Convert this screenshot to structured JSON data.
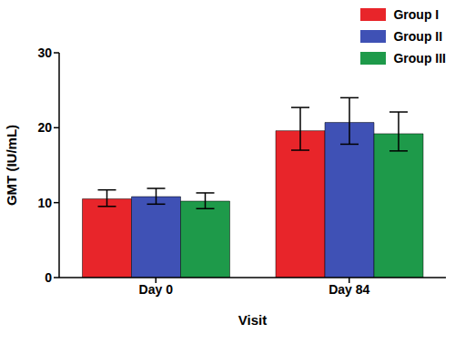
{
  "chart_data": {
    "type": "bar",
    "x_label": "Visit",
    "y_label": "GMT (IU/mL)",
    "categories": [
      "Day 0",
      "Day 84"
    ],
    "series": [
      {
        "name": "Group I",
        "color": "#e8252a",
        "values": [
          10.5,
          19.6
        ],
        "errors": [
          [
            1.0,
            1.2
          ],
          [
            2.6,
            3.1
          ]
        ]
      },
      {
        "name": "Group II",
        "color": "#3f51b5",
        "values": [
          10.8,
          20.7
        ],
        "errors": [
          [
            1.0,
            1.1
          ],
          [
            2.9,
            3.3
          ]
        ]
      },
      {
        "name": "Group III",
        "color": "#1e9a4a",
        "values": [
          10.2,
          19.2
        ],
        "errors": [
          [
            1.0,
            1.1
          ],
          [
            2.3,
            2.9
          ]
        ]
      }
    ],
    "ylim": [
      0,
      30
    ],
    "yticks": [
      0,
      10,
      20,
      30
    ],
    "grid": false,
    "legend": "upper right"
  }
}
